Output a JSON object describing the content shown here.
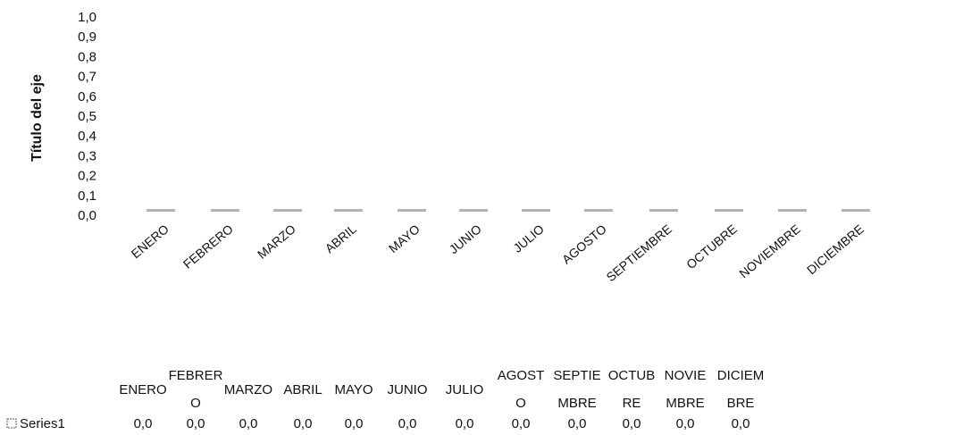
{
  "chart_data": {
    "type": "bar",
    "ylabel": "Título del eje",
    "yticks": [
      "1,0",
      "0,9",
      "0,8",
      "0,7",
      "0,6",
      "0,5",
      "0,4",
      "0,3",
      "0,2",
      "0,1",
      "0,0"
    ],
    "ylim": [
      0,
      1
    ],
    "categories": [
      "ENERO",
      "FEBRERO",
      "MARZO",
      "ABRIL",
      "MAYO",
      "JUNIO",
      "JULIO",
      "AGOSTO",
      "SEPTIEMBRE",
      "OCTUBRE",
      "NOVIEMBRE",
      "DICIEMBRE"
    ],
    "series": [
      {
        "name": "Series1",
        "values": [
          0,
          0,
          0,
          0,
          0,
          0,
          0,
          0,
          0,
          0,
          0,
          0
        ],
        "value_labels": [
          "0,0",
          "0,0",
          "0,0",
          "0,0",
          "0,0",
          "0,0",
          "0,0",
          "0,0",
          "0,0",
          "0,0",
          "0,0",
          "0,0"
        ]
      }
    ],
    "table_headers": [
      [
        "ENERO"
      ],
      [
        "FEBRER",
        "O"
      ],
      [
        "MARZO"
      ],
      [
        "ABRIL"
      ],
      [
        "MAYO"
      ],
      [
        "JUNIO"
      ],
      [
        "JULIO"
      ],
      [
        "AGOST",
        "O"
      ],
      [
        "SEPTIE",
        "MBRE"
      ],
      [
        "OCTUB",
        "RE"
      ],
      [
        "NOVIE",
        "MBRE"
      ],
      [
        "DICIEM",
        "BRE"
      ]
    ],
    "legend_position": "data-table",
    "grid": false,
    "colors": {
      "bar": "#9a9a9a",
      "text": "#111111"
    }
  }
}
